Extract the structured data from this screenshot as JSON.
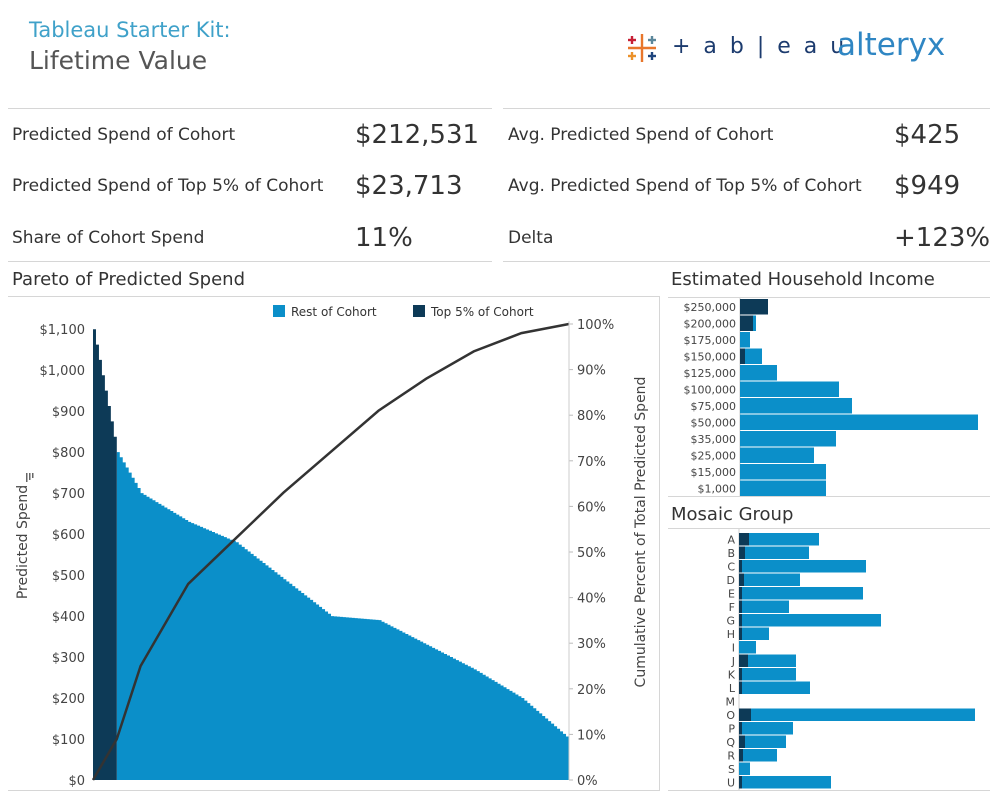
{
  "header": {
    "subtitle": "Tableau Starter Kit:",
    "title": "Lifetime Value",
    "logo_tableau": "+ a b | e a u",
    "logo_alteryx": "alteryx"
  },
  "kpis": {
    "left": [
      {
        "label": "Predicted Spend of Cohort",
        "value": "$212,531"
      },
      {
        "label": "Predicted Spend of Top 5% of Cohort",
        "value": "$23,713"
      },
      {
        "label": "Share of Cohort Spend",
        "value": "11%"
      }
    ],
    "right": [
      {
        "label": "Avg. Predicted Spend of Cohort",
        "value": "$425"
      },
      {
        "label": "Avg. Predicted Spend of Top 5% of Cohort",
        "value": "$949"
      },
      {
        "label": "Delta",
        "value": "+123%"
      }
    ]
  },
  "colors": {
    "rest": "#0b8fc9",
    "top": "#0d3a57",
    "line": "#333333"
  },
  "chart_data": [
    {
      "type": "area",
      "title": "Pareto of Predicted Spend",
      "ylabel": "Predicted Spend",
      "y2label": "Cumulative Percent of Total Predicted Spend",
      "ylim": [
        0,
        1120
      ],
      "y2lim": [
        0,
        1.0
      ],
      "yticks": [
        "$0",
        "$100",
        "$200",
        "$300",
        "$400",
        "$500",
        "$600",
        "$700",
        "$800",
        "$900",
        "$1,000",
        "$1,100"
      ],
      "y2ticks": [
        "0%",
        "10%",
        "20%",
        "30%",
        "40%",
        "50%",
        "60%",
        "70%",
        "80%",
        "90%",
        "100%"
      ],
      "legend": [
        {
          "name": "Rest of Cohort",
          "color": "#0b8fc9"
        },
        {
          "name": "Top 5% of Cohort",
          "color": "#0d3a57"
        }
      ],
      "top_share": 0.05,
      "curve_x": [
        0,
        0.05,
        0.1,
        0.2,
        0.3,
        0.4,
        0.5,
        0.6,
        0.7,
        0.8,
        0.9,
        1.0
      ],
      "spend": [
        1100,
        800,
        700,
        630,
        580,
        490,
        400,
        390,
        330,
        270,
        200,
        100
      ],
      "cumulative": [
        0,
        0.09,
        0.25,
        0.43,
        0.53,
        0.63,
        0.72,
        0.81,
        0.88,
        0.94,
        0.98,
        1.0
      ]
    },
    {
      "type": "bar",
      "title": "Estimated Household Income",
      "categories": [
        "$250,000",
        "$200,000",
        "$175,000",
        "$150,000",
        "$125,000",
        "$100,000",
        "$75,000",
        "$50,000",
        "$35,000",
        "$25,000",
        "$15,000",
        "$1,000"
      ],
      "series": [
        {
          "name": "Top 5% of Cohort",
          "values": [
            28,
            13,
            0,
            5,
            0,
            0,
            0,
            0,
            0,
            0,
            0,
            0
          ]
        },
        {
          "name": "Rest of Cohort",
          "values": [
            0,
            3,
            10,
            17,
            37,
            99,
            112,
            238,
            96,
            74,
            86,
            86
          ]
        }
      ]
    },
    {
      "type": "bar",
      "title": "Mosaic Group",
      "categories": [
        "A",
        "B",
        "C",
        "D",
        "E",
        "F",
        "G",
        "H",
        "I",
        "J",
        "K",
        "L",
        "M",
        "O",
        "P",
        "Q",
        "R",
        "S",
        "U"
      ],
      "series": [
        {
          "name": "Top 5% of Cohort",
          "values": [
            10,
            6,
            3,
            5,
            3,
            3,
            3,
            3,
            0,
            9,
            3,
            3,
            0,
            12,
            3,
            6,
            4,
            0,
            3
          ]
        },
        {
          "name": "Rest of Cohort",
          "values": [
            70,
            64,
            124,
            56,
            121,
            47,
            139,
            27,
            17,
            48,
            54,
            68,
            0,
            224,
            51,
            41,
            34,
            11,
            89
          ]
        }
      ]
    }
  ]
}
